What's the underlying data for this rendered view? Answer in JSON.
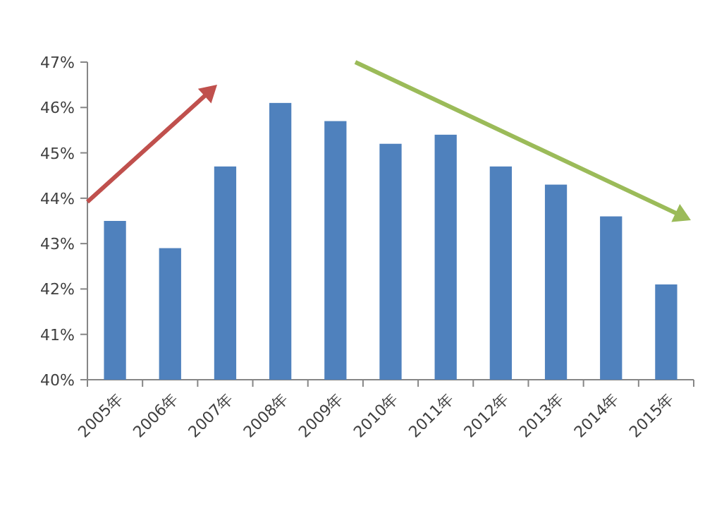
{
  "chart_data": {
    "type": "bar",
    "categories": [
      "2005年",
      "2006年",
      "2007年",
      "2008年",
      "2009年",
      "2010年",
      "2011年",
      "2012年",
      "2013年",
      "2014年",
      "2015年"
    ],
    "values": [
      43.5,
      42.9,
      44.7,
      46.1,
      45.7,
      45.2,
      45.4,
      44.7,
      44.3,
      43.6,
      42.1
    ],
    "color": "#4f81bd",
    "ylim": [
      40,
      47
    ],
    "yticks": [
      {
        "value": 40,
        "label": "40%"
      },
      {
        "value": 41,
        "label": "41%"
      },
      {
        "value": 42,
        "label": "42%"
      },
      {
        "value": 43,
        "label": "43%"
      },
      {
        "value": 44,
        "label": "44%"
      },
      {
        "value": 45,
        "label": "45%"
      },
      {
        "value": 46,
        "label": "46%"
      },
      {
        "value": 47,
        "label": "47%"
      }
    ]
  }
}
